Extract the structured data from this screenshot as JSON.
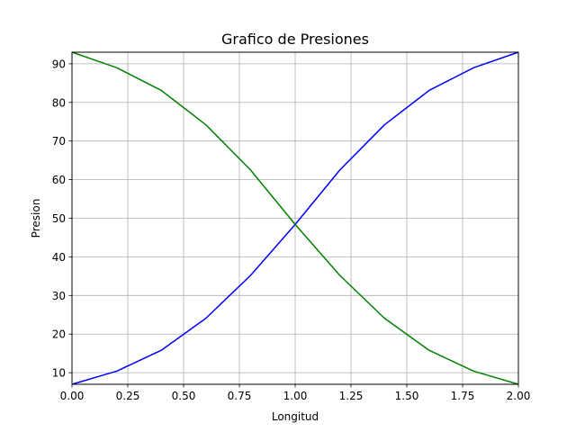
{
  "chart_data": {
    "type": "line",
    "title": "Grafico de Presiones",
    "xlabel": "Longitud",
    "ylabel": "Presion",
    "xlim": [
      0,
      2
    ],
    "ylim": [
      7,
      93
    ],
    "grid": true,
    "x_ticks": [
      0,
      0.25,
      0.5,
      0.75,
      1.0,
      1.25,
      1.5,
      1.75,
      2.0
    ],
    "x_tick_labels": [
      "0.00",
      "0.25",
      "0.50",
      "0.75",
      "1.00",
      "1.25",
      "1.50",
      "1.75",
      "2.00"
    ],
    "y_ticks": [
      10,
      20,
      30,
      40,
      50,
      60,
      70,
      80,
      90
    ],
    "y_tick_labels": [
      "10",
      "20",
      "30",
      "40",
      "50",
      "60",
      "70",
      "80",
      "90"
    ],
    "x": [
      0.0,
      0.2,
      0.4,
      0.6,
      0.8,
      1.0,
      1.2,
      1.4,
      1.6,
      1.8,
      2.0
    ],
    "series": [
      {
        "color": "#0000ff",
        "values": [
          7.0,
          10.4,
          15.8,
          24.1,
          35.2,
          48.4,
          62.5,
          74.2,
          83.1,
          89.0,
          93.0
        ]
      },
      {
        "color": "#008000",
        "values": [
          93.0,
          89.0,
          83.1,
          74.2,
          62.5,
          48.4,
          35.2,
          24.1,
          15.8,
          10.4,
          7.0
        ]
      }
    ]
  }
}
